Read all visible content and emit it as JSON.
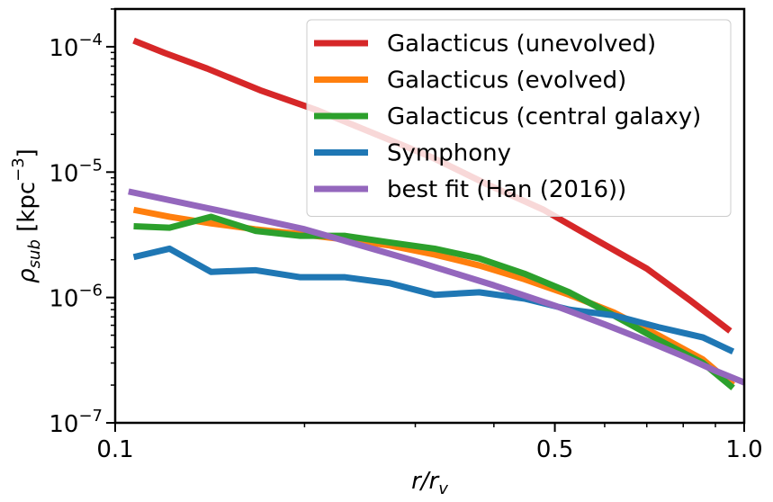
{
  "chart_data": {
    "type": "line",
    "xscale": "log",
    "yscale": "log",
    "xlim": [
      0.1,
      1.0
    ],
    "ylim": [
      1e-07,
      0.0002
    ],
    "xlabel": "r/r_v",
    "ylabel": "ρ_sub [kpc^-3]",
    "x_tick_labels": [
      {
        "value": 0.1,
        "label": "0.1"
      },
      {
        "value": 0.5,
        "label": "0.5"
      },
      {
        "value": 1.0,
        "label": "1.0"
      }
    ],
    "y_tick_labels": [
      {
        "value": 1e-07,
        "base": "10",
        "exp": "−7"
      },
      {
        "value": 1e-06,
        "base": "10",
        "exp": "−6"
      },
      {
        "value": 1e-05,
        "base": "10",
        "exp": "−5"
      },
      {
        "value": 0.0001,
        "base": "10",
        "exp": "−4"
      }
    ],
    "legend_position": "top-right",
    "series": [
      {
        "name": "Galacticus (unevolved)",
        "color": "#d62728",
        "x": [
          0.107,
          0.12,
          0.14,
          0.17,
          0.21,
          0.26,
          0.32,
          0.39,
          0.48,
          0.58,
          0.7,
          0.82,
          0.95
        ],
        "y": [
          0.000112,
          8.9e-05,
          6.7e-05,
          4.5e-05,
          3.1e-05,
          2e-05,
          1.3e-05,
          8e-06,
          5e-06,
          2.9e-06,
          1.7e-06,
          9.5e-07,
          5.4e-07
        ]
      },
      {
        "name": "Galacticus (evolved)",
        "color": "#ff7f0e",
        "x": [
          0.107,
          0.122,
          0.142,
          0.167,
          0.197,
          0.232,
          0.273,
          0.322,
          0.379,
          0.447,
          0.527,
          0.62,
          0.73,
          0.86,
          0.96
        ],
        "y": [
          5e-06,
          4.4e-06,
          3.9e-06,
          3.5e-06,
          3.2e-06,
          2.9e-06,
          2.6e-06,
          2.2e-06,
          1.8e-06,
          1.4e-06,
          1.05e-06,
          7.6e-07,
          5e-07,
          3.2e-07,
          2e-07
        ]
      },
      {
        "name": "Galacticus (central galaxy)",
        "color": "#2ca02c",
        "x": [
          0.107,
          0.122,
          0.142,
          0.167,
          0.197,
          0.232,
          0.273,
          0.322,
          0.379,
          0.447,
          0.527,
          0.62,
          0.73,
          0.86,
          0.96
        ],
        "y": [
          3.7e-06,
          3.6e-06,
          4.4e-06,
          3.4e-06,
          3.1e-06,
          3.1e-06,
          2.75e-06,
          2.45e-06,
          2.05e-06,
          1.55e-06,
          1.1e-06,
          7.2e-07,
          4.6e-07,
          3e-07,
          1.9e-07
        ]
      },
      {
        "name": "Symphony",
        "color": "#1f77b4",
        "x": [
          0.107,
          0.122,
          0.142,
          0.167,
          0.197,
          0.232,
          0.273,
          0.322,
          0.379,
          0.447,
          0.527,
          0.62,
          0.73,
          0.86,
          0.96
        ],
        "y": [
          2.1e-06,
          2.45e-06,
          1.6e-06,
          1.65e-06,
          1.45e-06,
          1.45e-06,
          1.3e-06,
          1.05e-06,
          1.1e-06,
          9.8e-07,
          8e-07,
          7.2e-07,
          5.8e-07,
          4.8e-07,
          3.7e-07
        ]
      },
      {
        "name": "best fit (Han (2016))",
        "color": "#9467bd",
        "x": [
          0.105,
          0.15,
          0.2,
          0.3,
          0.4,
          0.5,
          0.6,
          0.7,
          0.8,
          0.9,
          1.0
        ],
        "y": [
          7e-06,
          4.8e-06,
          3.5e-06,
          1.95e-06,
          1.25e-06,
          8.6e-07,
          6.1e-07,
          4.5e-07,
          3.4e-07,
          2.6e-07,
          2.1e-07
        ]
      }
    ]
  }
}
